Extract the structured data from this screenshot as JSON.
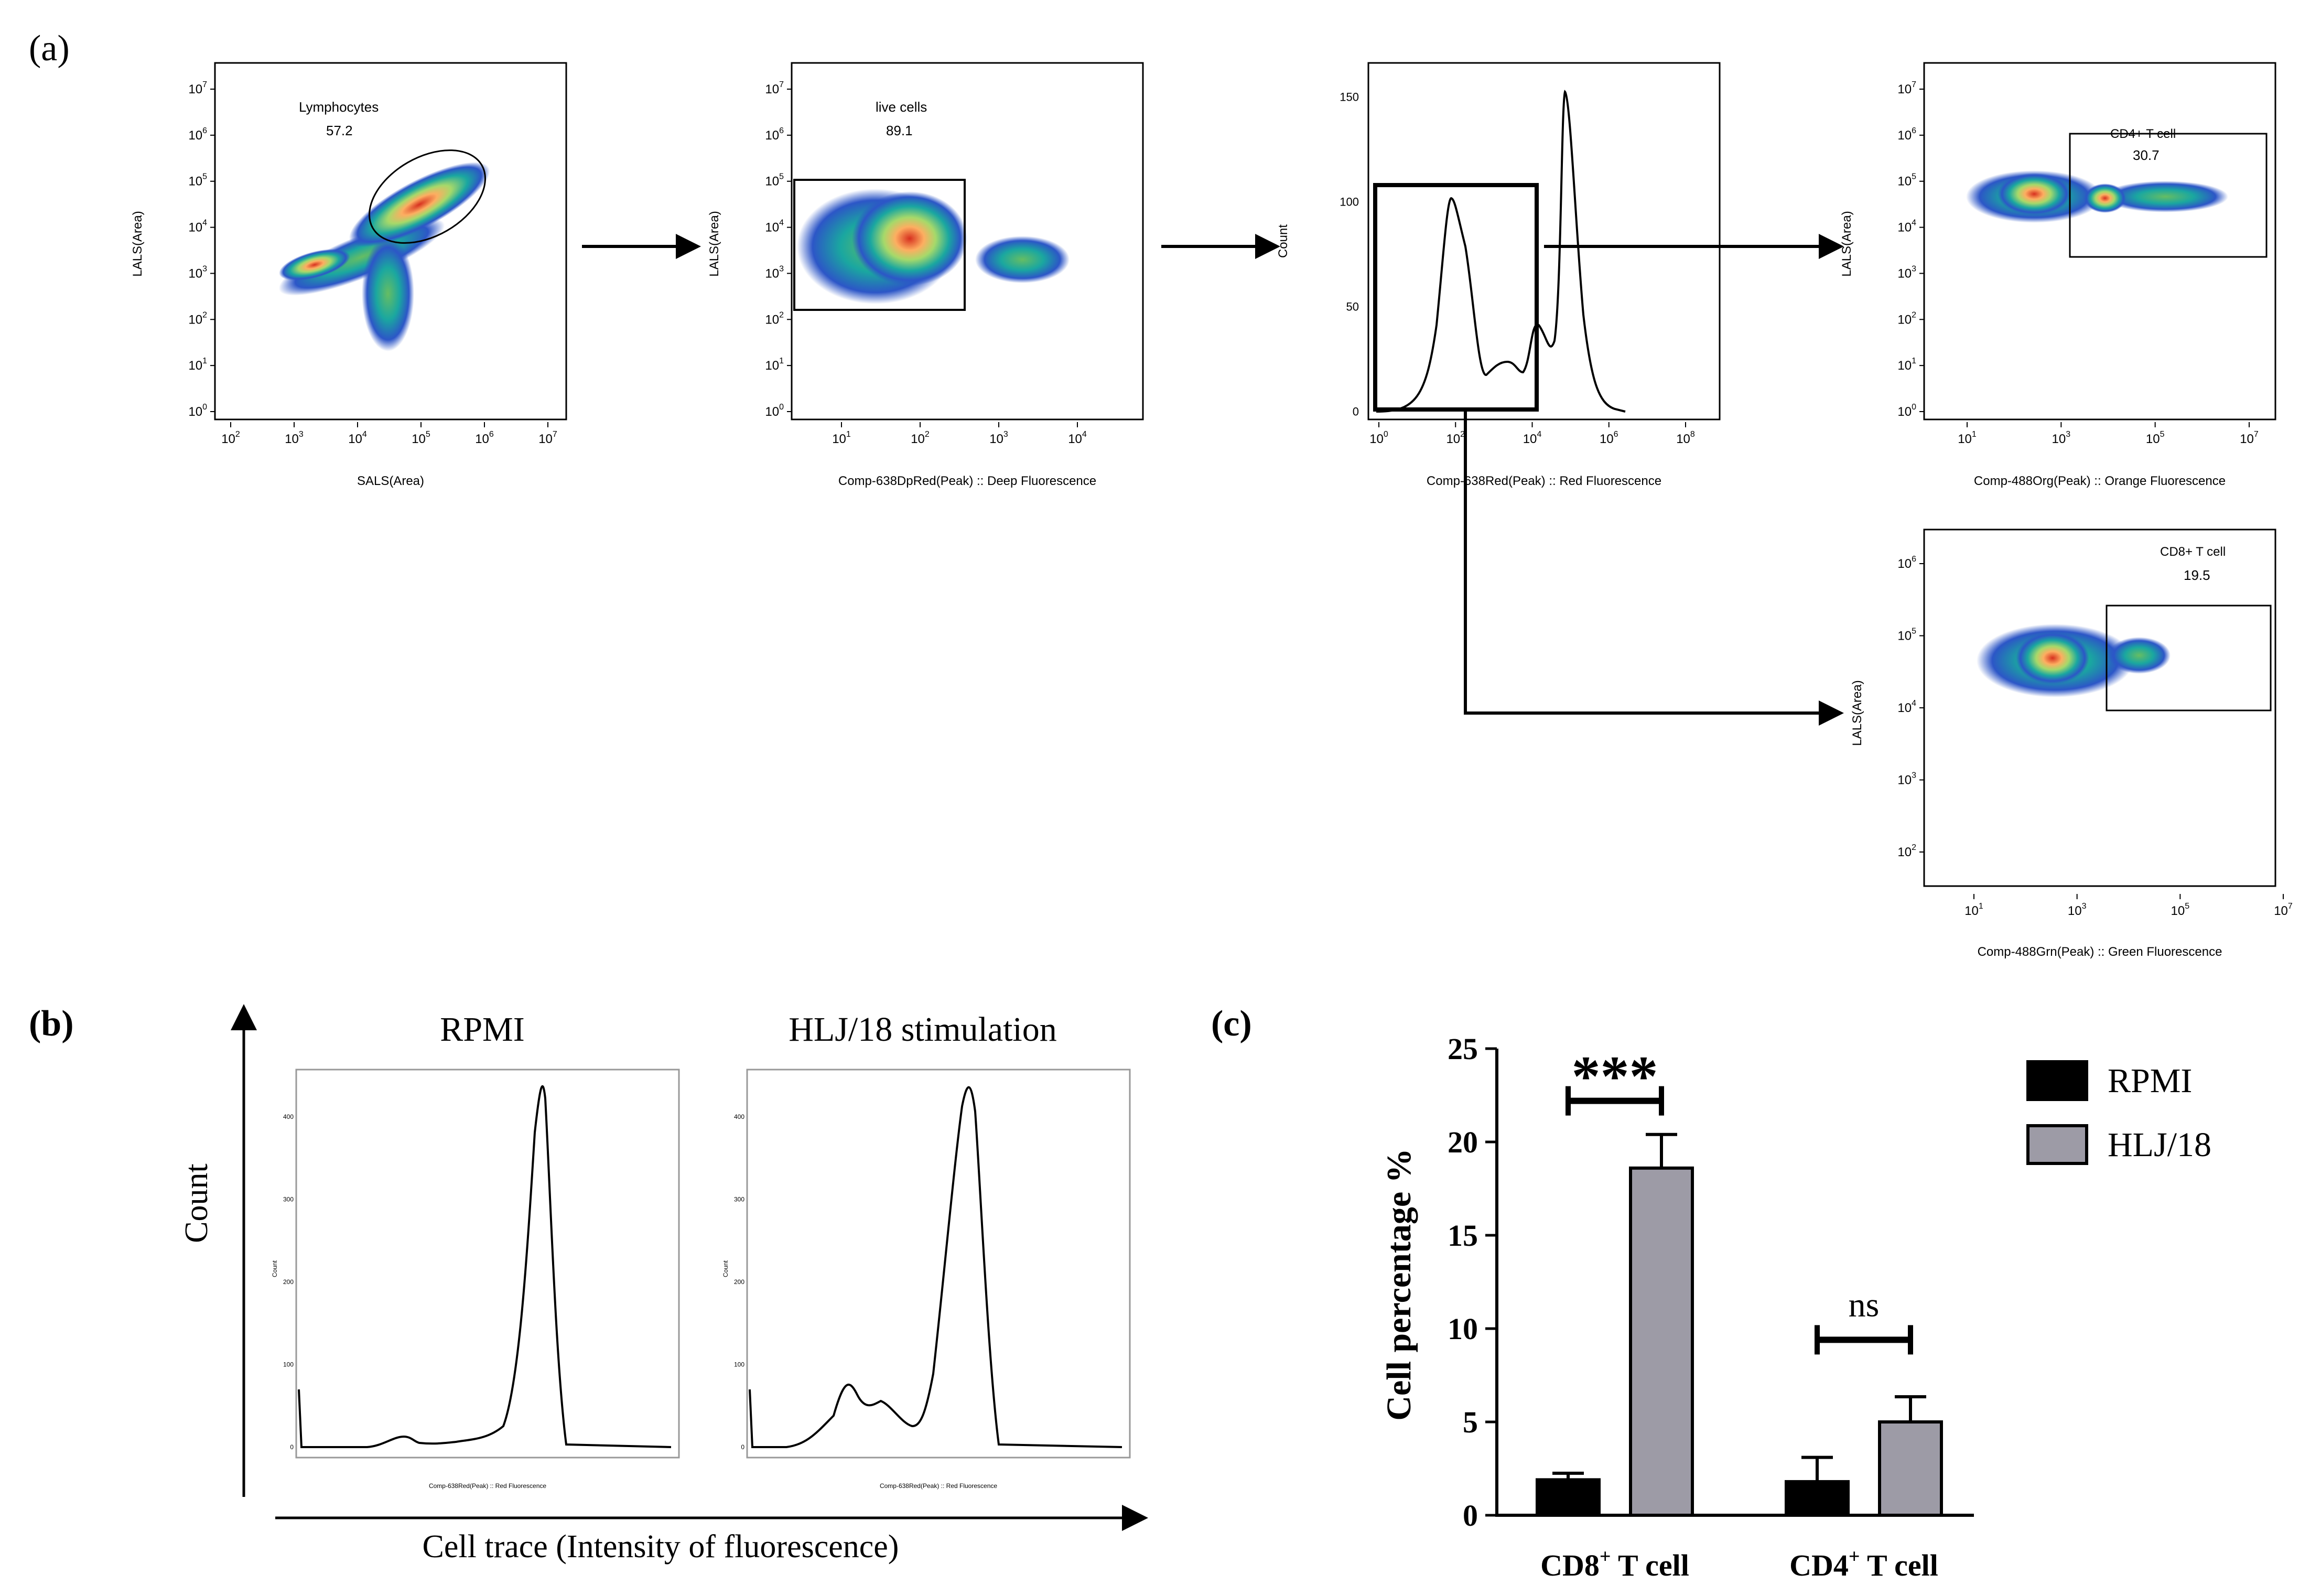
{
  "figure": {
    "panel_labels": {
      "a": "(a)",
      "b": "(b)",
      "c": "(c)"
    }
  },
  "panel_a": {
    "p1": {
      "ylabel": "LALS(Area)",
      "xlabel": "SALS(Area)",
      "gate_name": "Lymphocytes",
      "gate_value": "57.2",
      "yticks": [
        {
          "b": "10",
          "e": "7"
        },
        {
          "b": "10",
          "e": "6"
        },
        {
          "b": "10",
          "e": "5"
        },
        {
          "b": "10",
          "e": "4"
        },
        {
          "b": "10",
          "e": "3"
        },
        {
          "b": "10",
          "e": "2"
        },
        {
          "b": "10",
          "e": "1"
        },
        {
          "b": "10",
          "e": "0"
        }
      ],
      "xticks": [
        {
          "b": "10",
          "e": "2"
        },
        {
          "b": "10",
          "e": "3"
        },
        {
          "b": "10",
          "e": "4"
        },
        {
          "b": "10",
          "e": "5"
        },
        {
          "b": "10",
          "e": "6"
        },
        {
          "b": "10",
          "e": "7"
        }
      ]
    },
    "p2": {
      "ylabel": "LALS(Area)",
      "xlabel": "Comp-638DpRed(Peak) :: Deep Fluorescence",
      "gate_name": "live cells",
      "gate_value": "89.1",
      "yticks": [
        {
          "b": "10",
          "e": "7"
        },
        {
          "b": "10",
          "e": "6"
        },
        {
          "b": "10",
          "e": "5"
        },
        {
          "b": "10",
          "e": "4"
        },
        {
          "b": "10",
          "e": "3"
        },
        {
          "b": "10",
          "e": "2"
        },
        {
          "b": "10",
          "e": "1"
        },
        {
          "b": "10",
          "e": "0"
        }
      ],
      "xticks": [
        {
          "b": "10",
          "e": "1"
        },
        {
          "b": "10",
          "e": "2"
        },
        {
          "b": "10",
          "e": "3"
        },
        {
          "b": "10",
          "e": "4"
        }
      ]
    },
    "p3": {
      "ylabel": "Count",
      "xlabel": "Comp-638Red(Peak) :: Red Fluorescence",
      "yticks": [
        "150",
        "100",
        "50",
        "0"
      ],
      "xticks": [
        {
          "b": "10",
          "e": "0"
        },
        {
          "b": "10",
          "e": "2"
        },
        {
          "b": "10",
          "e": "4"
        },
        {
          "b": "10",
          "e": "6"
        },
        {
          "b": "10",
          "e": "8"
        }
      ]
    },
    "p4": {
      "ylabel": "LALS(Area)",
      "xlabel": "Comp-488Org(Peak) :: Orange Fluorescence",
      "gate_name": "CD4+ T cell",
      "gate_value": "30.7",
      "yticks": [
        {
          "b": "10",
          "e": "7"
        },
        {
          "b": "10",
          "e": "6"
        },
        {
          "b": "10",
          "e": "5"
        },
        {
          "b": "10",
          "e": "4"
        },
        {
          "b": "10",
          "e": "3"
        },
        {
          "b": "10",
          "e": "2"
        },
        {
          "b": "10",
          "e": "1"
        },
        {
          "b": "10",
          "e": "0"
        }
      ],
      "xticks": [
        {
          "b": "10",
          "e": "1"
        },
        {
          "b": "10",
          "e": "3"
        },
        {
          "b": "10",
          "e": "5"
        },
        {
          "b": "10",
          "e": "7"
        }
      ]
    },
    "p5": {
      "ylabel": "LALS(Area)",
      "xlabel": "Comp-488Grn(Peak) :: Green Fluorescence",
      "gate_name": "CD8+ T cell",
      "gate_value": "19.5",
      "yticks": [
        {
          "b": "10",
          "e": "6"
        },
        {
          "b": "10",
          "e": "5"
        },
        {
          "b": "10",
          "e": "4"
        },
        {
          "b": "10",
          "e": "3"
        },
        {
          "b": "10",
          "e": "2"
        }
      ],
      "xticks": [
        {
          "b": "10",
          "e": "1"
        },
        {
          "b": "10",
          "e": "3"
        },
        {
          "b": "10",
          "e": "5"
        },
        {
          "b": "10",
          "e": "7"
        }
      ]
    }
  },
  "panel_b": {
    "title_left": "RPMI",
    "title_right": "HLJ/18 stimulation",
    "ylabel": "Count",
    "xlabel": "Cell trace (Intensity of fluorescence)",
    "inner_xlabel": "Comp-638Red(Peak) :: Red Fluorescence",
    "inner_ylabel": "Count",
    "yticks": [
      "400",
      "300",
      "200",
      "100",
      "0"
    ]
  },
  "chart_data": {
    "type": "bar",
    "title": "",
    "xlabel": "",
    "ylabel": "Cell percentage %",
    "ylim": [
      0,
      25
    ],
    "yticks": [
      0,
      5,
      10,
      15,
      20,
      25
    ],
    "categories": [
      {
        "base": "CD8",
        "sup": "+",
        "rest": " T cell"
      },
      {
        "base": "CD4",
        "sup": "+",
        "rest": " T cell"
      }
    ],
    "series": [
      {
        "name": "RPMI",
        "color": "#000000",
        "values": [
          1.9,
          1.8
        ],
        "errors": [
          0.35,
          1.3
        ]
      },
      {
        "name": "HLJ/18",
        "color": "#9d9ba6",
        "values": [
          18.6,
          5.0
        ],
        "errors": [
          1.8,
          1.35
        ]
      }
    ],
    "significance": [
      {
        "category": 0,
        "label": "***",
        "y": 22.2
      },
      {
        "category": 1,
        "label": "ns",
        "y": 9.4
      }
    ],
    "legend": "top-right",
    "grid": false
  }
}
